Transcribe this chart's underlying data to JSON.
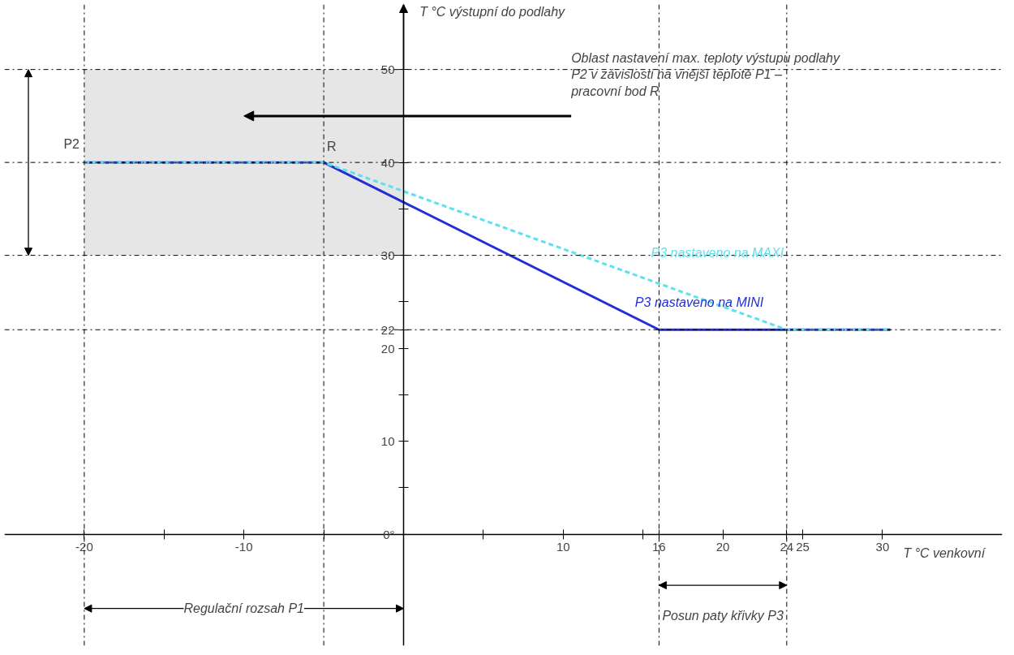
{
  "chart_data": {
    "type": "line",
    "xlabel": "T °C venkovní",
    "ylabel": "T °C výstupní do podlahy",
    "xlim": [
      -25,
      37.5
    ],
    "ylim": [
      -12,
      57
    ],
    "xticks": [
      -20,
      {
        "value": -15,
        "label": null
      },
      -10,
      {
        "value": -5,
        "label": null
      },
      {
        "value": 5,
        "label": null
      },
      10,
      {
        "value": 15,
        "label": null
      },
      16,
      20,
      24,
      25,
      30
    ],
    "yticks": [
      {
        "value": 0,
        "label": "0°"
      },
      {
        "value": 5,
        "label": null
      },
      10,
      {
        "value": 15,
        "label": null
      },
      20,
      22,
      {
        "value": 25,
        "label": null
      },
      30,
      {
        "value": 35,
        "label": null
      },
      40,
      {
        "value": 45,
        "label": null
      },
      50
    ],
    "series": [
      {
        "name": "P3 nastaveno na MINI",
        "color": "#1f2fd6",
        "x": [
          -20,
          -5,
          16,
          30.5
        ],
        "values": [
          40,
          40,
          22,
          22
        ],
        "line_style": "solid"
      },
      {
        "name": "P3 nastaveno na MAXI",
        "color": "#5ce1f0",
        "x": [
          -20,
          -5,
          24,
          30.5
        ],
        "values": [
          40,
          40,
          22,
          22
        ],
        "line_style": "dashed"
      }
    ],
    "ref_lines": [
      {
        "axis": "x",
        "value": -20,
        "label": null
      },
      {
        "axis": "x",
        "value": -5,
        "label": "R"
      },
      {
        "axis": "x",
        "value": 16,
        "label": null
      },
      {
        "axis": "x",
        "value": 24,
        "label": null
      },
      {
        "axis": "y",
        "value": 50,
        "label": null
      },
      {
        "axis": "y",
        "value": 40,
        "label": null
      },
      {
        "axis": "y",
        "value": 30,
        "label": null
      },
      {
        "axis": "y",
        "value": 22,
        "label": null
      }
    ],
    "bands": [
      {
        "axis": "y",
        "from": 30,
        "to": 50,
        "label": "P2",
        "color": "#e6e6e6"
      }
    ],
    "annotations": [
      "Oblast nastavení max. teploty výstupu podlahy P2 v závislosti na vnější teplotě P1 – pracovní bod R",
      "Regulační rozsah P1",
      "Posun paty křivky P3"
    ],
    "grid": false,
    "legend": false
  }
}
